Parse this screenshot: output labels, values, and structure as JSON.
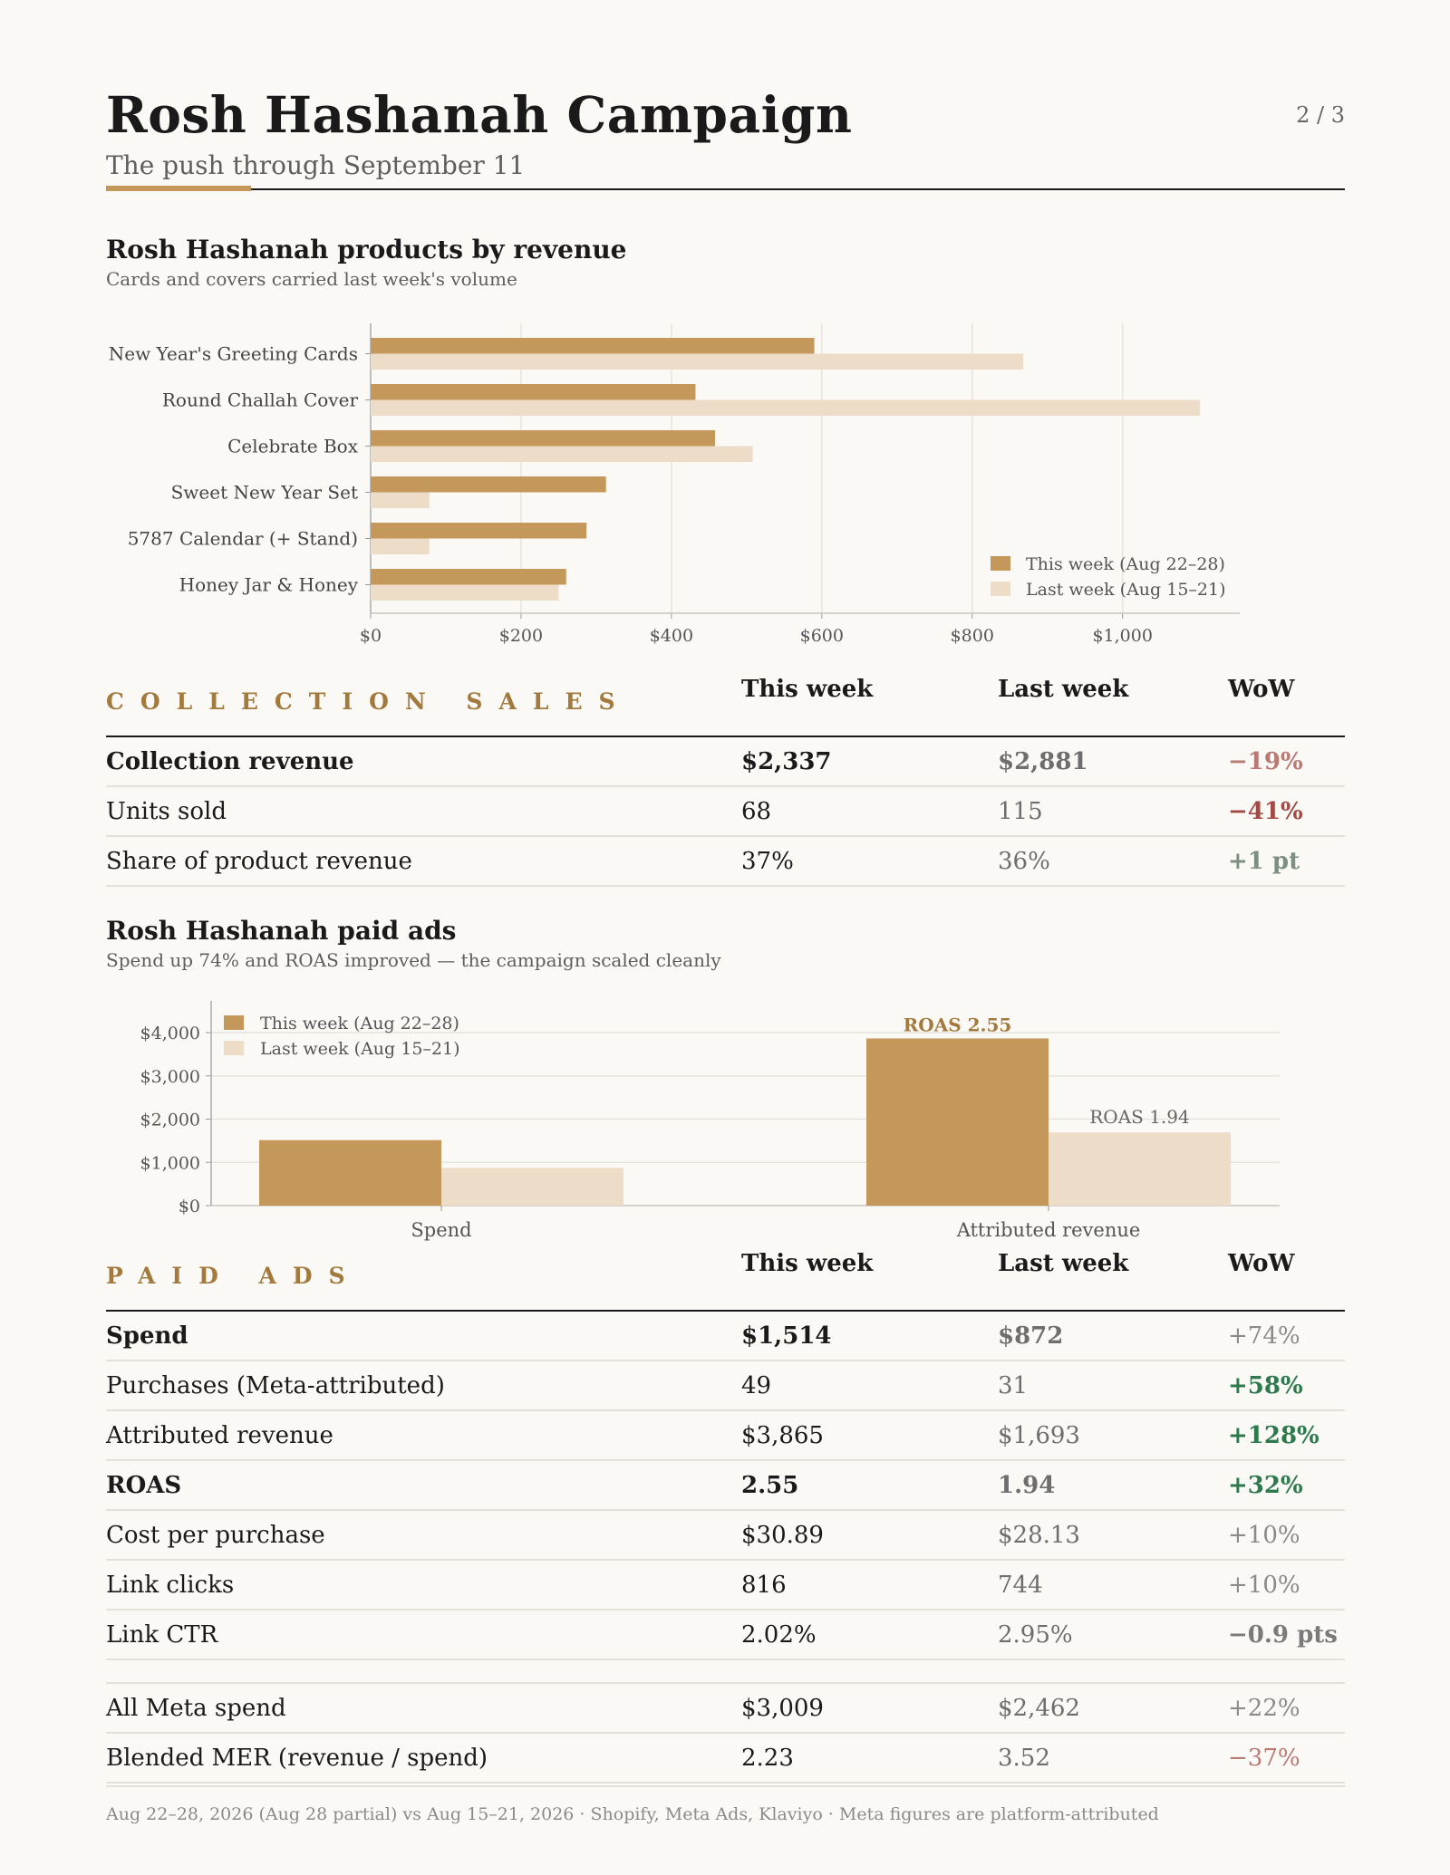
{
  "header": {
    "title": "Rosh Hashanah Campaign",
    "subtitle": "The push through September 11",
    "page_indicator": "2 / 3"
  },
  "products_chart": {
    "title": "Rosh Hashanah products by revenue",
    "subtitle": "Cards and covers carried last week's volume"
  },
  "collection_sales": {
    "label": "COLLECTION SALES",
    "columns": [
      "This week",
      "Last week",
      "WoW"
    ],
    "rows": [
      {
        "label": "Collection revenue",
        "this_week": "$2,337",
        "last_week": "$2,881",
        "wow": "−19%"
      },
      {
        "label": "Units sold",
        "this_week": "68",
        "last_week": "115",
        "wow": "−41%"
      },
      {
        "label": "Share of product revenue",
        "this_week": "37%",
        "last_week": "36%",
        "wow": "+1 pt"
      }
    ]
  },
  "ads_chart": {
    "title": "Rosh Hashanah paid ads",
    "subtitle": "Spend up 74% and ROAS improved — the campaign scaled cleanly"
  },
  "paid_ads": {
    "label": "PAID ADS",
    "columns": [
      "This week",
      "Last week",
      "WoW"
    ],
    "rows": [
      {
        "label": "Spend",
        "this_week": "$1,514",
        "last_week": "$872",
        "wow": "+74%"
      },
      {
        "label": "Purchases (Meta-attributed)",
        "this_week": "49",
        "last_week": "31",
        "wow": "+58%"
      },
      {
        "label": "Attributed revenue",
        "this_week": "$3,865",
        "last_week": "$1,693",
        "wow": "+128%"
      },
      {
        "label": "ROAS",
        "this_week": "2.55",
        "last_week": "1.94",
        "wow": "+32%"
      },
      {
        "label": "Cost per purchase",
        "this_week": "$30.89",
        "last_week": "$28.13",
        "wow": "+10%"
      },
      {
        "label": "Link clicks",
        "this_week": "816",
        "last_week": "744",
        "wow": "+10%"
      },
      {
        "label": "Link CTR",
        "this_week": "2.02%",
        "last_week": "2.95%",
        "wow": "−0.9 pts"
      },
      {
        "label": "All Meta spend",
        "this_week": "$3,009",
        "last_week": "$2,462",
        "wow": "+22%"
      },
      {
        "label": "Blended MER (revenue / spend)",
        "this_week": "2.23",
        "last_week": "3.52",
        "wow": "−37%"
      }
    ]
  },
  "footer": {
    "text": "Aug 22–28, 2026 (Aug 28 partial) vs Aug 15–21, 2026  ·  Shopify, Meta Ads, Klaviyo  ·  Meta figures are platform-attributed"
  },
  "colors": {
    "this_week": "#c4975a",
    "last_week": "#ecdcc8",
    "accent_text": "#a37a3e"
  },
  "chart_data": [
    {
      "type": "bar",
      "orientation": "horizontal",
      "title": "Rosh Hashanah products by revenue",
      "subtitle": "Cards and covers carried last week's volume",
      "categories": [
        "New Year's Greeting Cards",
        "Round Challah Cover",
        "Celebrate Box",
        "Sweet New Year Set",
        "5787 Calendar (+ Stand)",
        "Honey Jar & Honey"
      ],
      "series": [
        {
          "name": "This week (Aug 22–28)",
          "values": [
            590,
            432,
            458,
            313,
            287,
            260
          ]
        },
        {
          "name": "Last week (Aug 15–21)",
          "values": [
            868,
            1103,
            508,
            78,
            78,
            250
          ]
        }
      ],
      "xticks": [
        "$0",
        "$200",
        "$400",
        "$600",
        "$800",
        "$1,000"
      ],
      "xlim": [
        0,
        1160
      ],
      "grid": true,
      "legend": "bottom-right"
    },
    {
      "type": "bar",
      "title": "Rosh Hashanah paid ads",
      "subtitle": "Spend up 74% and ROAS improved — the campaign scaled cleanly",
      "categories": [
        "Spend",
        "Attributed revenue"
      ],
      "series": [
        {
          "name": "This week (Aug 22–28)",
          "values": [
            1514,
            3865
          ]
        },
        {
          "name": "Last week (Aug 15–21)",
          "values": [
            872,
            1693
          ]
        }
      ],
      "annotations": [
        "ROAS 2.55",
        "ROAS 1.94"
      ],
      "yticks": [
        "$0",
        "$1,000",
        "$2,000",
        "$3,000",
        "$4,000"
      ],
      "ylim": [
        0,
        4200
      ],
      "grid": true,
      "legend": "top-left"
    }
  ]
}
